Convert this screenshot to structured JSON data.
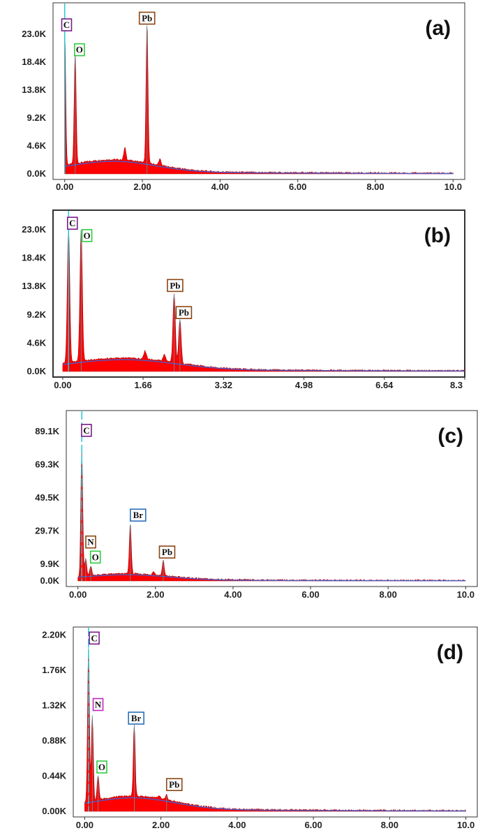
{
  "chart_data": [
    {
      "type": "area",
      "panel_label": "(a)",
      "yticks": [
        "23.0K",
        "18.4K",
        "13.8K",
        "9.2K",
        "4.6K",
        "0.0K"
      ],
      "ytick_values": [
        23.0,
        18.4,
        13.8,
        9.2,
        4.6,
        0.0
      ],
      "xticks": [
        "0.00",
        "2.00",
        "4.00",
        "6.00",
        "8.00",
        "10.0"
      ],
      "xtick_values": [
        0.0,
        2.0,
        4.0,
        6.0,
        8.0,
        10.0
      ],
      "xlim": [
        -0.3,
        10.3
      ],
      "ylim": [
        0.0,
        27.5
      ],
      "y_unit_scale": "K",
      "fill_color": "#ff0000",
      "background_color": "#4a5cc8",
      "marker_color": "#29c8d8",
      "marker_x": 0.0,
      "peaks": [
        {
          "element": "C",
          "x": 0.0,
          "y": 24.0,
          "label_x": 0.05,
          "label_y": 24.5,
          "color": "#7a1a8a"
        },
        {
          "element": "O",
          "x": 0.27,
          "y": 20.0,
          "label_x": 0.38,
          "label_y": 20.4,
          "color": "#2ecc40"
        },
        {
          "element": "Pb",
          "x": 2.12,
          "y": 24.8,
          "label_x": 2.12,
          "label_y": 25.6,
          "color": "#8b4513"
        }
      ],
      "minor_peaks": [
        {
          "x": 1.55,
          "y": 2.0
        },
        {
          "x": 2.45,
          "y": 1.0
        }
      ]
    },
    {
      "type": "area",
      "panel_label": "(b)",
      "yticks": [
        "23.0K",
        "18.4K",
        "13.8K",
        "9.2K",
        "4.6K",
        "0.0K"
      ],
      "ytick_values": [
        23.0,
        18.4,
        13.8,
        9.2,
        4.6,
        0.0
      ],
      "xticks": [
        "0.00",
        "1.66",
        "3.32",
        "4.98",
        "6.64",
        "8.3"
      ],
      "xtick_values": [
        0.0,
        1.66,
        3.32,
        4.98,
        6.64,
        8.3
      ],
      "xlim": [
        -0.2,
        8.3
      ],
      "ylim": [
        0.0,
        25.5
      ],
      "y_unit_scale": "K",
      "fill_color": "#ff0000",
      "background_color": "#4a5cc8",
      "marker_color": "#29c8d8",
      "marker_x": 0.12,
      "peaks": [
        {
          "element": "C",
          "x": 0.12,
          "y": 23.5,
          "label_x": 0.2,
          "label_y": 24.0,
          "color": "#7a1a8a"
        },
        {
          "element": "O",
          "x": 0.38,
          "y": 23.0,
          "label_x": 0.5,
          "label_y": 22.0,
          "color": "#2ecc40"
        },
        {
          "element": "Pb",
          "x": 2.3,
          "y": 12.5,
          "label_x": 2.32,
          "label_y": 13.9,
          "color": "#8b4513"
        },
        {
          "element": "Pb",
          "x": 2.42,
          "y": 8.5,
          "label_x": 2.5,
          "label_y": 9.5,
          "color": "#8b4513"
        }
      ],
      "minor_peaks": [
        {
          "x": 1.7,
          "y": 1.3
        },
        {
          "x": 2.1,
          "y": 1.0
        }
      ]
    },
    {
      "type": "area",
      "panel_label": "(c)",
      "yticks": [
        "89.1K",
        "69.3K",
        "49.5K",
        "29.7K",
        "9.9K",
        "0.0K"
      ],
      "ytick_values": [
        89.1,
        69.3,
        49.5,
        29.7,
        9.9,
        0.0
      ],
      "xticks": [
        "0.00",
        "2.00",
        "4.00",
        "6.00",
        "8.00",
        "10.0"
      ],
      "xtick_values": [
        0.0,
        2.0,
        4.0,
        6.0,
        8.0,
        10.0
      ],
      "xlim": [
        -0.3,
        10.3
      ],
      "ylim": [
        0.0,
        99.0
      ],
      "y_unit_scale": "K",
      "fill_color": "#ff0000",
      "background_color": "#4a5cc8",
      "marker_color": "#29c8d8",
      "marker_x": 0.1,
      "peaks": [
        {
          "element": "C",
          "x": 0.1,
          "y": 78.0,
          "label_x": 0.22,
          "label_y": 89.5,
          "color": "#7a1a8a"
        },
        {
          "element": "N",
          "x": 0.2,
          "y": 13.0,
          "label_x": 0.33,
          "label_y": 23.0,
          "color": "#8b4513"
        },
        {
          "element": "O",
          "x": 0.33,
          "y": 9.0,
          "label_x": 0.45,
          "label_y": 14.0,
          "color": "#2ecc40"
        },
        {
          "element": "Br",
          "x": 1.35,
          "y": 34.0,
          "label_x": 1.55,
          "label_y": 39.0,
          "color": "#2a6fb8"
        },
        {
          "element": "Pb",
          "x": 2.2,
          "y": 12.0,
          "label_x": 2.3,
          "label_y": 17.0,
          "color": "#8b4513"
        }
      ],
      "minor_peaks": [
        {
          "x": 1.95,
          "y": 2.0
        }
      ]
    },
    {
      "type": "area",
      "panel_label": "(d)",
      "yticks": [
        "2.20K",
        "1.76K",
        "1.32K",
        "0.88K",
        "0.44K",
        "0.00K"
      ],
      "ytick_values": [
        2.2,
        1.76,
        1.32,
        0.88,
        0.44,
        0.0
      ],
      "xticks": [
        "0.00",
        "2.00",
        "4.00",
        "6.00",
        "8.00",
        "10.0"
      ],
      "xtick_values": [
        0.0,
        2.0,
        4.0,
        6.0,
        8.0,
        10.0
      ],
      "xlim": [
        -0.3,
        10.3
      ],
      "ylim": [
        0.0,
        2.25
      ],
      "y_unit_scale": "K",
      "fill_color": "#ff0000",
      "background_color": "#4a5cc8",
      "marker_color": "#29c8d8",
      "marker_x": 0.1,
      "peaks": [
        {
          "element": "C",
          "x": 0.1,
          "y": 2.05,
          "label_x": 0.25,
          "label_y": 2.16,
          "color": "#7a1a8a"
        },
        {
          "element": "N",
          "x": 0.2,
          "y": 1.2,
          "label_x": 0.35,
          "label_y": 1.33,
          "color": "#c026c0"
        },
        {
          "element": "O",
          "x": 0.35,
          "y": 0.45,
          "label_x": 0.45,
          "label_y": 0.55,
          "color": "#2ecc40"
        },
        {
          "element": "Br",
          "x": 1.3,
          "y": 1.08,
          "label_x": 1.35,
          "label_y": 1.16,
          "color": "#2a6fb8"
        },
        {
          "element": "Pb",
          "x": 2.15,
          "y": 0.2,
          "label_x": 2.35,
          "label_y": 0.33,
          "color": "#8b4513"
        }
      ],
      "minor_peaks": [
        {
          "x": 1.95,
          "y": 0.03
        }
      ]
    }
  ]
}
